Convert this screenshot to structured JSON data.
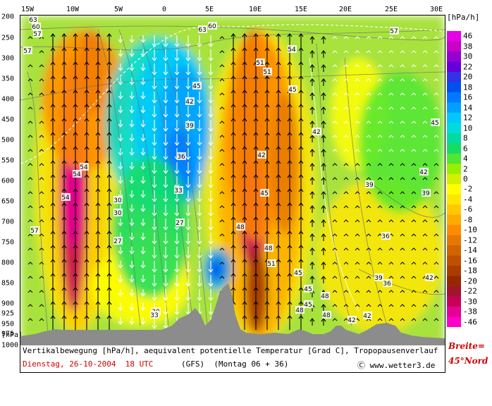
{
  "x_axis": {
    "ticks": [
      "15W",
      "10W",
      "5W",
      "0",
      "5E",
      "10E",
      "15E",
      "20E",
      "25E",
      "30E"
    ]
  },
  "y_axis": {
    "ticks": [
      "200",
      "250",
      "300",
      "350",
      "400",
      "450",
      "500",
      "550",
      "600",
      "650",
      "700",
      "750",
      "800",
      "850",
      "900",
      "925",
      "950",
      "975",
      "1000"
    ],
    "unit": "[hPa]"
  },
  "colorbar": {
    "unit": "[hPa/h]",
    "levels": [
      "46",
      "38",
      "30",
      "22",
      "20",
      "18",
      "16",
      "14",
      "12",
      "10",
      "8",
      "6",
      "4",
      "2",
      "0",
      "-2",
      "-4",
      "-6",
      "-8",
      "-10",
      "-12",
      "-14",
      "-16",
      "-18",
      "-20",
      "-22",
      "-30",
      "-38",
      "-46"
    ],
    "colors": [
      "#e600e6",
      "#c800c8",
      "#9600d2",
      "#6400dc",
      "#3232e6",
      "#0050f0",
      "#0078ff",
      "#00a0ff",
      "#00c8ff",
      "#00dcdc",
      "#00dca0",
      "#14dc64",
      "#50e632",
      "#96f000",
      "#d2f000",
      "#ffff00",
      "#ffe600",
      "#ffc800",
      "#ffaa00",
      "#ff8c00",
      "#e67800",
      "#d26400",
      "#be5000",
      "#aa3c00",
      "#962800",
      "#a0142d",
      "#c8005a",
      "#e60096",
      "#ff00c8"
    ]
  },
  "caption": {
    "line1": "Vertikalbewegung [hPa/h], aequivalent potentielle Temperatur [Grad C], Tropopausenverlauf",
    "date": "Dienstag, 26-10-2004  18 UTC",
    "model": "(GFS)  (Montag 06 + 36)",
    "site": "Ⓒ www.wetter3.de"
  },
  "side_note": {
    "line1": "Breite=",
    "line2": "45°Nord"
  },
  "contour_labels": [
    "63",
    "60",
    "57",
    "57",
    "54",
    "54",
    "54",
    "57",
    "51",
    "45",
    "42",
    "39",
    "36",
    "33",
    "30",
    "30",
    "27",
    "27",
    "30",
    "33",
    "45",
    "48",
    "42",
    "45",
    "48",
    "51",
    "45",
    "45",
    "48",
    "48",
    "48",
    "45",
    "42",
    "42",
    "42",
    "39",
    "39",
    "36",
    "39",
    "36",
    "42",
    "42",
    "45",
    "51",
    "54",
    "57",
    "60",
    "63"
  ],
  "colors": {
    "terrain": "#8c8c8c",
    "tropopause": "#ffffff",
    "red_text": "#d20000",
    "arrow_up": "#000000",
    "arrow_down": "#ffffff"
  }
}
